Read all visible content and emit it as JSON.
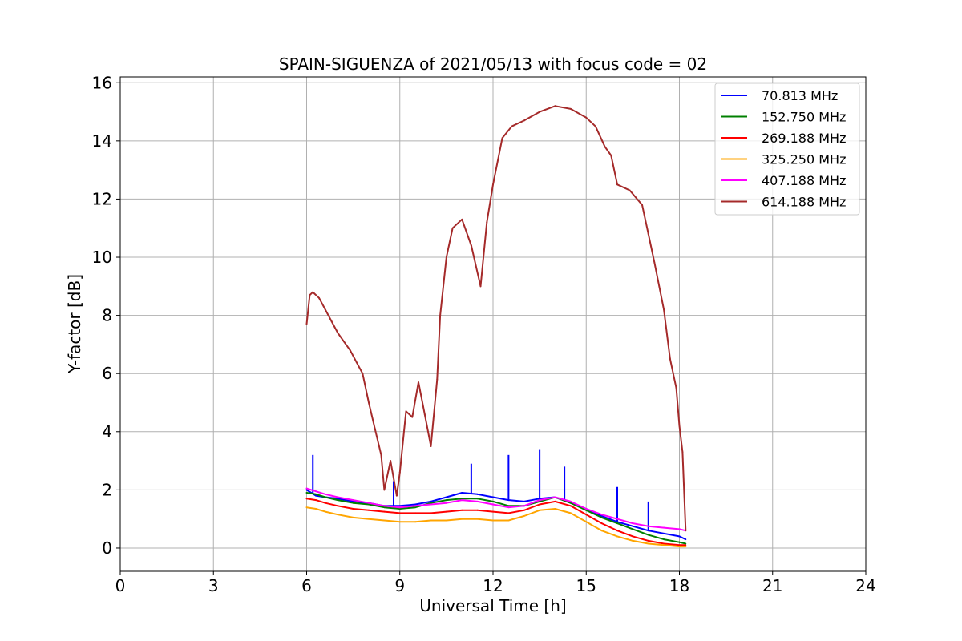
{
  "chart_data": {
    "type": "line",
    "title": "SPAIN-SIGUENZA of 2021/05/13 with focus code = 02",
    "xlabel": "Universal Time [h]",
    "ylabel": "Y-factor [dB]",
    "xlim": [
      0,
      24
    ],
    "ylim": [
      -0.8,
      16.2
    ],
    "xticks": [
      0,
      3,
      6,
      9,
      12,
      15,
      18,
      21,
      24
    ],
    "yticks": [
      0,
      2,
      4,
      6,
      8,
      10,
      12,
      14,
      16
    ],
    "grid": true,
    "legend_position": "top-right",
    "series": [
      {
        "name": " 70.813 MHz",
        "color": "#0000ff",
        "x": [
          6.0,
          6.3,
          6.6,
          7.0,
          7.5,
          8.0,
          8.5,
          9.0,
          9.5,
          10.0,
          10.5,
          11.0,
          11.5,
          12.0,
          12.5,
          13.0,
          13.5,
          14.0,
          14.5,
          15.0,
          15.5,
          16.0,
          16.5,
          17.0,
          17.5,
          18.0,
          18.2
        ],
        "values": [
          2.0,
          1.8,
          1.75,
          1.7,
          1.6,
          1.55,
          1.45,
          1.45,
          1.5,
          1.6,
          1.75,
          1.9,
          1.85,
          1.75,
          1.65,
          1.6,
          1.7,
          1.75,
          1.55,
          1.35,
          1.1,
          0.9,
          0.75,
          0.6,
          0.5,
          0.4,
          0.3
        ],
        "spikes": [
          [
            6.2,
            3.2
          ],
          [
            8.8,
            2.3
          ],
          [
            11.3,
            2.9
          ],
          [
            12.5,
            3.2
          ],
          [
            13.5,
            3.4
          ],
          [
            14.3,
            2.8
          ],
          [
            16.0,
            2.1
          ],
          [
            17.0,
            1.6
          ]
        ]
      },
      {
        "name": "152.750 MHz",
        "color": "#008000",
        "x": [
          6.0,
          6.3,
          6.6,
          7.0,
          7.5,
          8.0,
          8.5,
          9.0,
          9.5,
          10.0,
          10.5,
          11.0,
          11.5,
          12.0,
          12.5,
          13.0,
          13.5,
          14.0,
          14.5,
          15.0,
          15.5,
          16.0,
          16.5,
          17.0,
          17.5,
          18.0,
          18.2
        ],
        "values": [
          1.9,
          1.85,
          1.75,
          1.65,
          1.55,
          1.5,
          1.4,
          1.35,
          1.4,
          1.55,
          1.65,
          1.7,
          1.7,
          1.6,
          1.45,
          1.45,
          1.6,
          1.75,
          1.55,
          1.3,
          1.05,
          0.85,
          0.65,
          0.45,
          0.3,
          0.2,
          0.15
        ],
        "spikes": []
      },
      {
        "name": "269.188 MHz",
        "color": "#ff0000",
        "x": [
          6.0,
          6.3,
          6.6,
          7.0,
          7.5,
          8.0,
          8.5,
          9.0,
          9.5,
          10.0,
          10.5,
          11.0,
          11.5,
          12.0,
          12.5,
          13.0,
          13.5,
          14.0,
          14.5,
          15.0,
          15.5,
          16.0,
          16.5,
          17.0,
          17.5,
          18.0,
          18.2
        ],
        "values": [
          1.7,
          1.65,
          1.55,
          1.45,
          1.35,
          1.3,
          1.25,
          1.2,
          1.2,
          1.2,
          1.25,
          1.3,
          1.3,
          1.25,
          1.2,
          1.3,
          1.5,
          1.6,
          1.45,
          1.15,
          0.85,
          0.6,
          0.4,
          0.25,
          0.15,
          0.1,
          0.1
        ],
        "spikes": []
      },
      {
        "name": "325.250 MHz",
        "color": "#ffa500",
        "x": [
          6.0,
          6.3,
          6.6,
          7.0,
          7.5,
          8.0,
          8.5,
          9.0,
          9.5,
          10.0,
          10.5,
          11.0,
          11.5,
          12.0,
          12.5,
          13.0,
          13.5,
          14.0,
          14.5,
          15.0,
          15.5,
          16.0,
          16.5,
          17.0,
          17.5,
          18.0,
          18.2
        ],
        "values": [
          1.4,
          1.35,
          1.25,
          1.15,
          1.05,
          1.0,
          0.95,
          0.9,
          0.9,
          0.95,
          0.95,
          1.0,
          1.0,
          0.95,
          0.95,
          1.1,
          1.3,
          1.35,
          1.2,
          0.9,
          0.6,
          0.4,
          0.25,
          0.15,
          0.1,
          0.05,
          0.05
        ],
        "spikes": []
      },
      {
        "name": "407.188 MHz",
        "color": "#ff00ff",
        "x": [
          6.0,
          6.3,
          6.6,
          7.0,
          7.5,
          8.0,
          8.5,
          9.0,
          9.5,
          10.0,
          10.5,
          11.0,
          11.5,
          12.0,
          12.5,
          13.0,
          13.5,
          14.0,
          14.5,
          15.0,
          15.5,
          16.0,
          16.5,
          17.0,
          17.5,
          18.0,
          18.2
        ],
        "values": [
          2.05,
          1.95,
          1.85,
          1.75,
          1.65,
          1.55,
          1.45,
          1.4,
          1.45,
          1.5,
          1.55,
          1.65,
          1.6,
          1.5,
          1.4,
          1.45,
          1.65,
          1.75,
          1.6,
          1.35,
          1.15,
          1.0,
          0.85,
          0.75,
          0.7,
          0.65,
          0.6
        ],
        "spikes": []
      },
      {
        "name": "614.188 MHz",
        "color": "#a52a2a",
        "x": [
          6.0,
          6.1,
          6.2,
          6.4,
          6.6,
          6.8,
          7.0,
          7.2,
          7.4,
          7.6,
          7.8,
          8.0,
          8.2,
          8.4,
          8.5,
          8.7,
          8.9,
          9.0,
          9.2,
          9.4,
          9.6,
          9.8,
          10.0,
          10.2,
          10.3,
          10.5,
          10.7,
          11.0,
          11.3,
          11.6,
          11.8,
          12.0,
          12.3,
          12.6,
          13.0,
          13.5,
          14.0,
          14.5,
          15.0,
          15.3,
          15.6,
          15.8,
          16.0,
          16.4,
          16.8,
          17.0,
          17.2,
          17.5,
          17.7,
          17.9,
          18.0,
          18.1,
          18.2
        ],
        "values": [
          7.7,
          8.7,
          8.8,
          8.6,
          8.2,
          7.8,
          7.4,
          7.1,
          6.8,
          6.4,
          6.0,
          5.0,
          4.1,
          3.2,
          2.0,
          3.0,
          1.8,
          2.6,
          4.7,
          4.5,
          5.7,
          4.6,
          3.5,
          5.8,
          8.0,
          10.0,
          11.0,
          11.3,
          10.4,
          9.0,
          11.2,
          12.5,
          14.1,
          14.5,
          14.7,
          15.0,
          15.2,
          15.1,
          14.8,
          14.5,
          13.8,
          13.5,
          12.5,
          12.3,
          11.8,
          10.8,
          9.8,
          8.2,
          6.5,
          5.5,
          4.2,
          3.3,
          0.6
        ],
        "spikes": []
      }
    ]
  }
}
